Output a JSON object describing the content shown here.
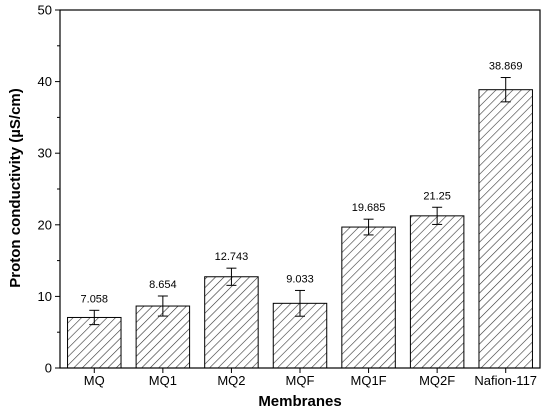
{
  "chart_data": {
    "type": "bar",
    "title": "",
    "xlabel": "Membranes",
    "ylabel": "Proton conductivity (µS/cm)",
    "ylim": [
      0,
      50
    ],
    "yticks": [
      0,
      10,
      20,
      30,
      40,
      50
    ],
    "categories": [
      "MQ",
      "MQ1",
      "MQ2",
      "MQF",
      "MQ1F",
      "MQ2F",
      "Nafion-117"
    ],
    "values": [
      7.058,
      8.654,
      12.743,
      9.033,
      19.685,
      21.25,
      38.869
    ],
    "value_labels": [
      "7.058",
      "8.654",
      "12.743",
      "9.033",
      "19.685",
      "21.25",
      "38.869"
    ],
    "errors": [
      1.0,
      1.4,
      1.2,
      1.8,
      1.1,
      1.2,
      1.7
    ],
    "bar_fill": "diagonal-hatch",
    "grid": false,
    "legend": "none"
  }
}
